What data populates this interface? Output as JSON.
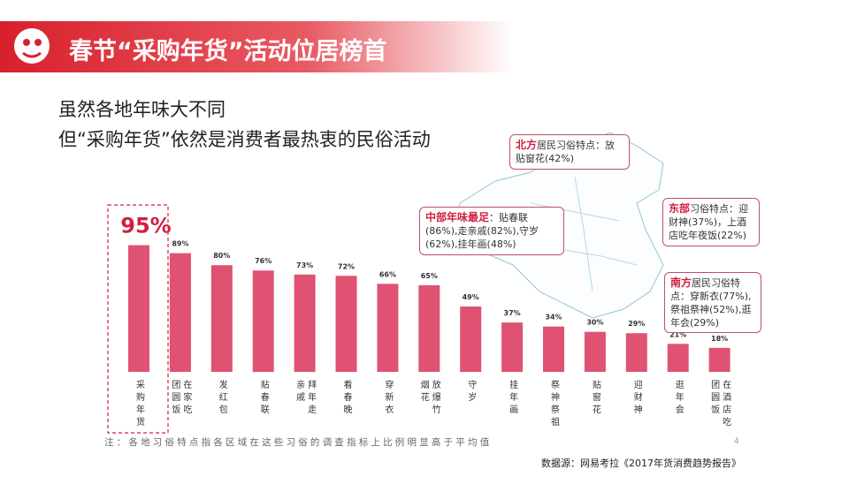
{
  "header": {
    "title": "春节“采购年货”活动位居榜首",
    "lines": [
      "虽然各地年味大不同",
      "但“采购年货”依然是消费者最热衷的民俗活动"
    ]
  },
  "callouts": [
    {
      "title": "北方",
      "text": "居民习俗特点：放贴窗花(42%)"
    },
    {
      "title": "中部年味最足",
      "text": "：贴春联(86%),走亲戚(82%),守岁(62%),挂年画(48%)"
    },
    {
      "title": "东部",
      "text": "习俗特点：迎财神(37%)，上酒店吃年夜饭(22%)"
    },
    {
      "title": "南方",
      "text": "居民习俗特点：穿新衣(77%),祭祖祭神(52%),逛年会(29%)"
    }
  ],
  "chart_data": {
    "type": "bar",
    "categories": [
      "采购年货",
      "在家吃团圆饭",
      "发红包",
      "贴春联",
      "拜年走亲戚",
      "看春晚",
      "穿新衣",
      "放爆竹烟花",
      "守岁",
      "挂年画",
      "祭神祭祖",
      "贴窗花",
      "迎财神",
      "逛年会",
      "在酒店吃团圆饭"
    ],
    "values": [
      95,
      89,
      80,
      76,
      73,
      72,
      66,
      65,
      49,
      37,
      34,
      30,
      29,
      21,
      18
    ],
    "value_labels": [
      "95%",
      "89%",
      "80%",
      "76%",
      "73%",
      "72%",
      "66%",
      "65%",
      "49%",
      "37%",
      "34%",
      "30%",
      "29%",
      "21%",
      "18%"
    ],
    "color": "#e05272",
    "ylim": [
      0,
      100
    ]
  },
  "note": "注：各地习俗特点指各区域在这些习俗的调查指标上比例明显高于平均值",
  "page_number": "4",
  "source": "数据源：网易考拉《2017年货消费趋势报告》"
}
